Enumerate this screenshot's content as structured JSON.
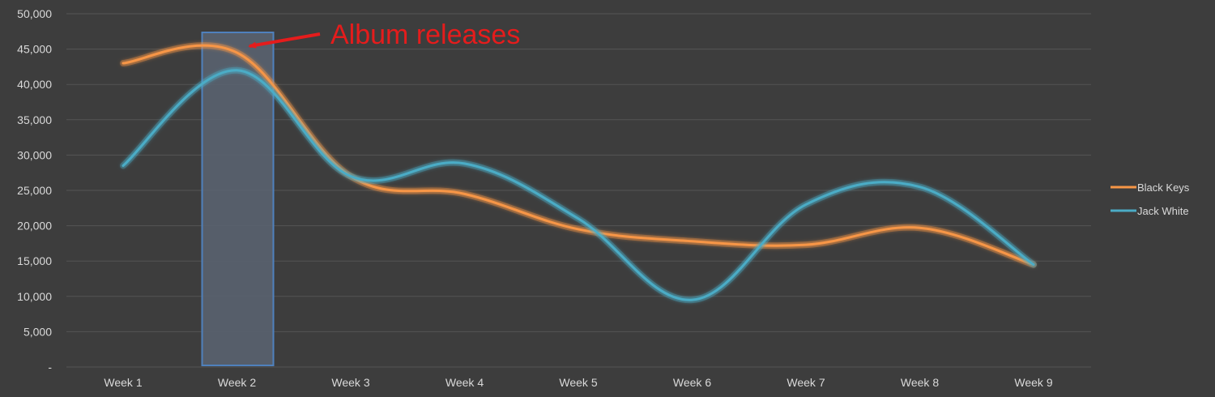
{
  "chart_data": {
    "type": "line",
    "smooth": true,
    "background": "#3d3d3d",
    "grid": true,
    "gridColor": "#555555",
    "categories": [
      "Week 1",
      "Week 2",
      "Week 3",
      "Week 4",
      "Week 5",
      "Week 6",
      "Week 7",
      "Week 8",
      "Week 9"
    ],
    "series": [
      {
        "name": "Black Keys",
        "color": "#f79646",
        "values": [
          43000,
          44500,
          27000,
          24500,
          19500,
          17800,
          17300,
          19700,
          14500
        ]
      },
      {
        "name": "Jack White",
        "color": "#4bacc6",
        "values": [
          28500,
          42000,
          27000,
          28800,
          21000,
          9500,
          23000,
          25500,
          14500
        ]
      }
    ],
    "ylim": [
      0,
      50000
    ],
    "yticks": [
      "-",
      "5,000",
      "10,000",
      "15,000",
      "20,000",
      "25,000",
      "30,000",
      "35,000",
      "40,000",
      "45,000",
      "50,000"
    ],
    "ytick_values": [
      0,
      5000,
      10000,
      15000,
      20000,
      25000,
      30000,
      35000,
      40000,
      45000,
      50000
    ],
    "legend_position": "right",
    "title": "",
    "xlabel": "",
    "ylabel": "",
    "annotation": {
      "text": "Album releases",
      "color": "#e51c1c",
      "highlight_category": "Week 2",
      "highlight_fill": "#5a6472",
      "highlight_stroke": "#4f81bd"
    }
  }
}
